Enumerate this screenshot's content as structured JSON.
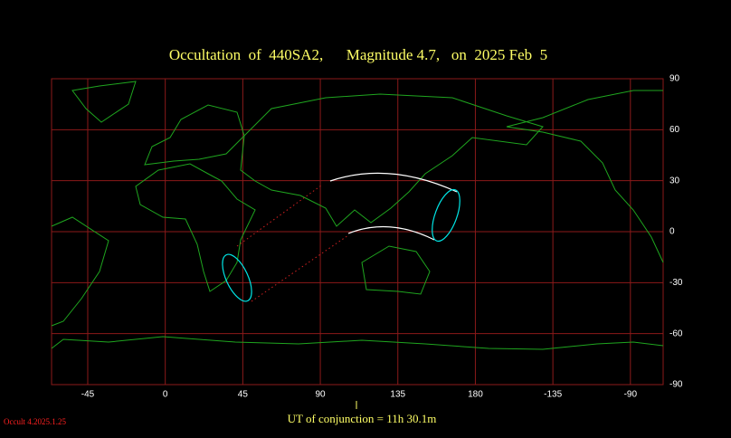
{
  "chart_data": {
    "type": "map",
    "title": "Occultation  of  440SA2,      Magnitude 4.7,   on  2025 Feb  5",
    "xlim": [
      -66,
      289
    ],
    "ylim": [
      -90,
      90
    ],
    "xticks": [
      -45,
      0,
      45,
      90,
      135,
      180,
      {
        "value": 225,
        "label": "-135"
      },
      {
        "value": 270,
        "label": "-90"
      }
    ],
    "yticks": [
      90,
      60,
      30,
      0,
      -30,
      -60,
      -90
    ],
    "grid": true,
    "grid_color": "#8b1a1a",
    "annotation": "UT of conjunction = 11h 30.1m",
    "version": "Occult 4.2025.1.25"
  }
}
